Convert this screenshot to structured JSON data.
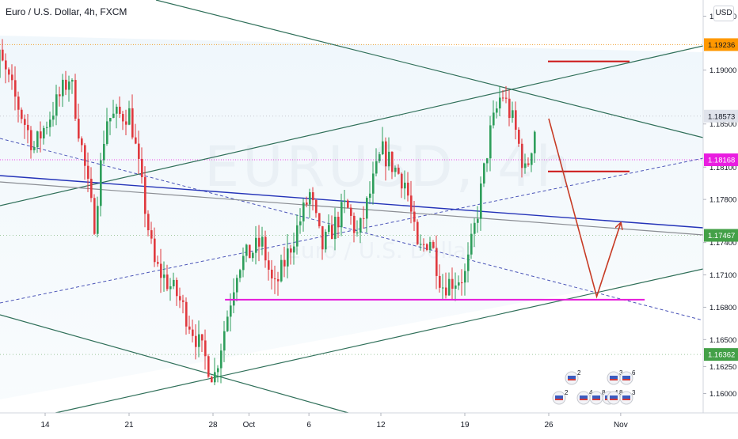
{
  "title": "Euro / U.S. Dollar, 4h, FXCM",
  "watermark": {
    "symbol": "EURUSD, 4h",
    "name": "Euro / U.S. Dollar"
  },
  "currency_button": "USD",
  "colors": {
    "bull": "#2e9e5b",
    "bear": "#e0393e",
    "channel": "#2f6f59",
    "blue_line": "#2433b8",
    "gray_line": "#8a8d93",
    "magenta": "#e61ad9",
    "projection": "#c73b25",
    "target_red": "#cc1515",
    "label_orange": "#ff9800",
    "label_magenta": "#e91ee0",
    "label_green": "#43a047",
    "label_gray": "#e0e3eb"
  },
  "chart_data": {
    "type": "candlestick",
    "symbol": "EURUSD",
    "timeframe": "4h",
    "x_tick_labels": [
      "14",
      "21",
      "28",
      "Oct",
      "6",
      "12",
      "19",
      "26",
      "Nov"
    ],
    "y_tick_labels": [
      "1.16000",
      "1.16250",
      "1.16500",
      "1.16800",
      "1.17100",
      "1.17400",
      "1.17800",
      "1.18100",
      "1.18500",
      "1.19000",
      "1.19500"
    ],
    "ylim": [
      1.1582,
      1.1965
    ],
    "price_labels": [
      {
        "value": "1.19236",
        "role": "orange dotted level"
      },
      {
        "value": "1.18573",
        "role": "last price"
      },
      {
        "value": "1.18168",
        "role": "magenta dotted level"
      },
      {
        "value": "1.17467",
        "role": "trendline level"
      },
      {
        "value": "1.16362",
        "role": "green dotted level"
      }
    ],
    "horizontal_levels": [
      1.19236,
      1.18573,
      1.18168,
      1.17467,
      1.16362
    ],
    "target_lines": [
      1.1908,
      1.1806
    ],
    "support_line": {
      "value": 1.1687,
      "from": "Sep 29",
      "to": "Nov 3"
    },
    "projected_path": [
      {
        "date": "Oct 26",
        "price": 1.1855
      },
      {
        "date": "Oct 30",
        "price": 1.169
      },
      {
        "date": "Nov 1",
        "price": 1.1758
      }
    ],
    "swing_points": [
      {
        "date": "Sep 9",
        "price": 1.177
      },
      {
        "date": "Sep 10",
        "price": 1.1915
      },
      {
        "date": "Sep 13",
        "price": 1.1828
      },
      {
        "date": "Sep 16",
        "price": 1.1895
      },
      {
        "date": "Sep 18",
        "price": 1.1756
      },
      {
        "date": "Sep 19",
        "price": 1.1855
      },
      {
        "date": "Sep 21",
        "price": 1.186
      },
      {
        "date": "Sep 23",
        "price": 1.172
      },
      {
        "date": "Sep 25",
        "price": 1.169
      },
      {
        "date": "Sep 28",
        "price": 1.1614
      },
      {
        "date": "Sep 30",
        "price": 1.172
      },
      {
        "date": "Oct 2",
        "price": 1.174
      },
      {
        "date": "Oct 3",
        "price": 1.1695
      },
      {
        "date": "Oct 6",
        "price": 1.1785
      },
      {
        "date": "Oct 7",
        "price": 1.1735
      },
      {
        "date": "Oct 9",
        "price": 1.1775
      },
      {
        "date": "Oct 10",
        "price": 1.1745
      },
      {
        "date": "Oct 12",
        "price": 1.1825
      },
      {
        "date": "Oct 14",
        "price": 1.1795
      },
      {
        "date": "Oct 15",
        "price": 1.173
      },
      {
        "date": "Oct 16",
        "price": 1.1745
      },
      {
        "date": "Oct 17",
        "price": 1.17
      },
      {
        "date": "Oct 19",
        "price": 1.171
      },
      {
        "date": "Oct 20",
        "price": 1.177
      },
      {
        "date": "Oct 21",
        "price": 1.184
      },
      {
        "date": "Oct 22",
        "price": 1.188
      },
      {
        "date": "Oct 23",
        "price": 1.185
      },
      {
        "date": "Oct 24",
        "price": 1.1803
      },
      {
        "date": "Oct 25",
        "price": 1.186
      }
    ],
    "economic_calendar_counts": [
      "2",
      "3",
      "6",
      "2",
      "4",
      "8",
      "4",
      "8",
      "3"
    ]
  }
}
